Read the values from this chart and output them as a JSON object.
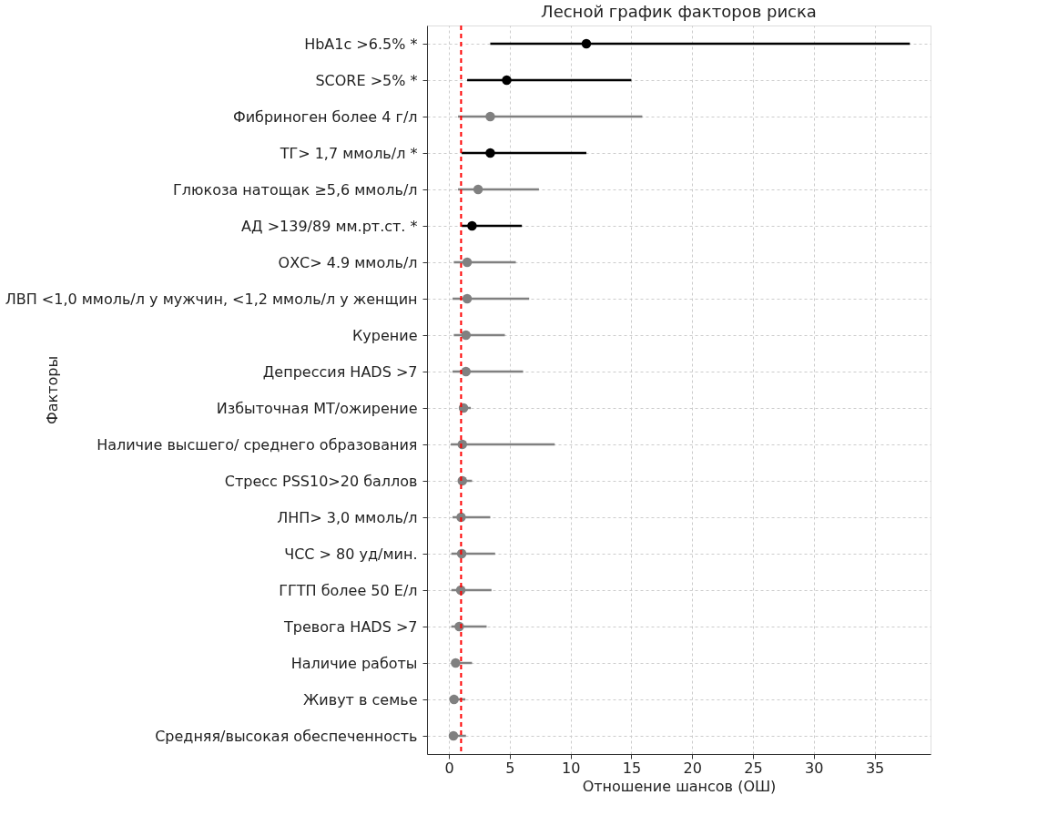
{
  "chart_data": {
    "type": "scatter",
    "orientation": "horizontal",
    "title": "Лесной график факторов риска",
    "xlabel": "Отношение шансов (ОШ)",
    "ylabel": "Факторы",
    "categories": [
      "HbA1c >6.5% *",
      "SCORE >5% *",
      "Фибриноген более 4 г/л",
      "ТГ> 1,7 ммоль/л *",
      "Глюкоза натощак ≥5,6 ммоль/л",
      "АД >139/89 мм.рт.ст. *",
      "ОХС> 4.9 ммоль/л",
      "ЛВП <1,0 ммоль/л у мужчин, <1,2 ммоль/л у женщин",
      "Курение",
      "Депрессия HADS >7",
      "Избыточная МТ/ожирение",
      "Наличие высшего/ среднего образования",
      "Стресс PSS10>20 баллов",
      "ЛНП> 3,0 ммоль/л",
      "ЧСС > 80 уд/мин.",
      "ГГТП более 50 Е/л",
      "Тревога HADS >7",
      "Наличие работы",
      "Живут в семье",
      "Средняя/высокая обеспеченность"
    ],
    "series": [
      {
        "color": "#000000",
        "values": [
          11.3,
          4.75,
          null,
          3.4,
          null,
          1.9,
          null,
          null,
          null,
          null,
          null,
          null,
          null,
          null,
          null,
          null,
          null,
          null,
          null,
          null
        ],
        "errors": [
          [
            3.4,
            37.9
          ],
          [
            1.5,
            15.0
          ],
          null,
          [
            1.05,
            11.3
          ],
          null,
          [
            1.05,
            6.0
          ],
          null,
          null,
          null,
          null,
          null,
          null,
          null,
          null,
          null,
          null,
          null,
          null,
          null,
          null
        ]
      },
      {
        "color": "#808080",
        "values": [
          null,
          null,
          3.4,
          null,
          2.4,
          null,
          1.5,
          1.5,
          1.4,
          1.4,
          1.2,
          1.1,
          1.1,
          1.0,
          1.05,
          0.97,
          0.85,
          0.55,
          0.42,
          0.37
        ],
        "errors": [
          null,
          null,
          [
            0.75,
            15.9
          ],
          null,
          [
            0.75,
            7.4
          ],
          null,
          [
            0.4,
            5.5
          ],
          [
            0.3,
            6.6
          ],
          [
            0.4,
            4.6
          ],
          [
            0.3,
            6.1
          ],
          [
            0.9,
            1.8
          ],
          [
            0.15,
            8.7
          ],
          [
            0.8,
            1.9
          ],
          [
            0.3,
            3.4
          ],
          [
            0.2,
            3.8
          ],
          [
            0.2,
            3.5
          ],
          [
            0.2,
            3.1
          ],
          [
            0.3,
            1.9
          ],
          [
            0.25,
            1.35
          ],
          [
            0.2,
            1.4
          ]
        ]
      }
    ],
    "xlim": [
      -1.8,
      39.6
    ],
    "xticks": [
      0,
      5,
      10,
      15,
      20,
      25,
      30,
      35
    ],
    "ref_lines": [
      {
        "axis": "x",
        "value": 1,
        "color": "#ff0000",
        "line_style": "dashed"
      }
    ],
    "grid": true,
    "marker": "circle"
  }
}
